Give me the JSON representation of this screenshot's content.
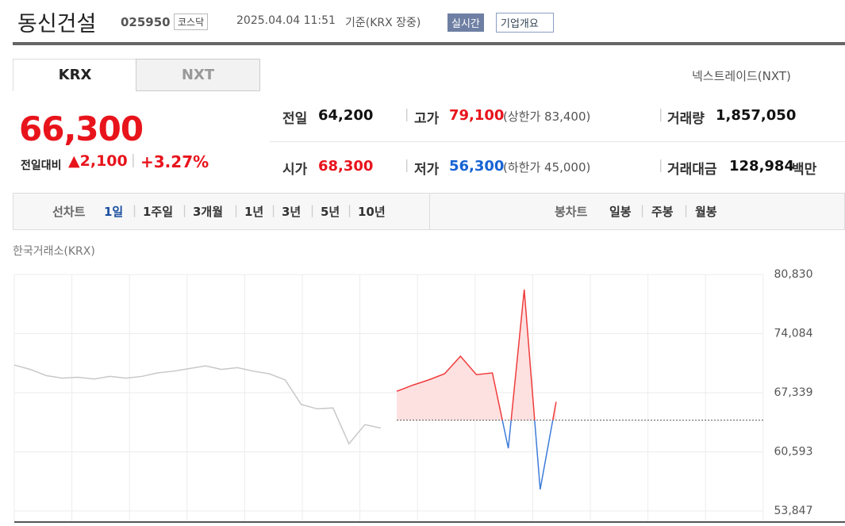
{
  "header": {
    "name": "동신건설",
    "code": "025950",
    "market": "코스닥",
    "datetime": "2025.04.04 11:51",
    "basis": "기준(KRX 장중)",
    "realtime": "실시간",
    "company": "기업개요"
  },
  "tabs": [
    "KRX",
    "NXT"
  ],
  "nxt_link": "넥스트레이드(NXT)",
  "quote": {
    "price": "66,300",
    "change_label": "전일대비",
    "change": "2,100",
    "rate": "+3.27%"
  },
  "stats": [
    {
      "label": "전일",
      "value": "64,200"
    },
    {
      "label": "고가",
      "value": "79,100",
      "note": "(상한가 83,400)"
    },
    {
      "label": "거래량",
      "value": "1,857,050"
    },
    {
      "label": "시가",
      "value": "68,300"
    },
    {
      "label": "저가",
      "value": "56,300",
      "note": "(하한가 45,000)"
    },
    {
      "label": "거래대금",
      "value": "128,984",
      "unit": "백만"
    }
  ],
  "chart_menu": {
    "line_label": "선차트",
    "periods": [
      "1일",
      "1주일",
      "3개월",
      "1년",
      "3년",
      "5년",
      "10년"
    ],
    "candle_label": "봉차트",
    "candle_periods": [
      "일봉",
      "주봉",
      "월봉"
    ]
  },
  "chart_data": {
    "type": "line",
    "source": "한국거래소(KRX)",
    "categories": [
      null,
      null,
      null,
      null,
      null,
      null,
      null,
      null,
      null,
      null,
      null,
      null,
      null,
      null,
      null,
      null,
      null,
      null,
      null,
      null,
      null,
      null,
      null,
      null,
      null,
      null,
      null,
      null,
      null,
      null,
      null,
      null,
      null,
      null,
      null,
      null,
      null,
      null,
      null,
      null,
      null,
      null,
      null,
      null,
      null,
      null,
      null,
      null
    ],
    "series": [
      {
        "color": "#c8c8c8",
        "values": [
          70500,
          70000,
          69300,
          69000,
          69100,
          68900,
          69200,
          69000,
          69200,
          69600,
          69800,
          70100,
          70400,
          70000,
          70200,
          69800,
          69500,
          68800,
          66000,
          65500,
          65600,
          61500,
          63700,
          63300,
          null,
          null,
          null,
          null,
          null,
          null,
          null,
          null,
          null,
          null,
          null,
          null,
          null,
          null,
          null,
          null,
          null,
          null,
          null,
          null,
          null,
          null,
          null,
          null
        ]
      },
      {
        "color": "#f03c3c",
        "below_color": "#3d7bd9",
        "fill": "#fde0e0",
        "values": [
          null,
          null,
          null,
          null,
          null,
          null,
          null,
          null,
          null,
          null,
          null,
          null,
          null,
          null,
          null,
          null,
          null,
          null,
          null,
          null,
          null,
          null,
          null,
          null,
          67500,
          68200,
          68800,
          69500,
          71500,
          69400,
          69600,
          61000,
          79100,
          56300,
          66300,
          null,
          null,
          null,
          null,
          null,
          null,
          null,
          null,
          null,
          null,
          null,
          null,
          null
        ]
      }
    ],
    "reference": 64200,
    "ylim": [
      52579,
      80830
    ],
    "yticks": [
      {
        "value": 53847,
        "label": "53,847"
      },
      {
        "value": 60593,
        "label": "60,593"
      },
      {
        "value": 67339,
        "label": "67,339"
      },
      {
        "value": 74084,
        "label": "74,084"
      },
      {
        "value": 80830,
        "label": "80,830"
      }
    ],
    "grid": true
  }
}
